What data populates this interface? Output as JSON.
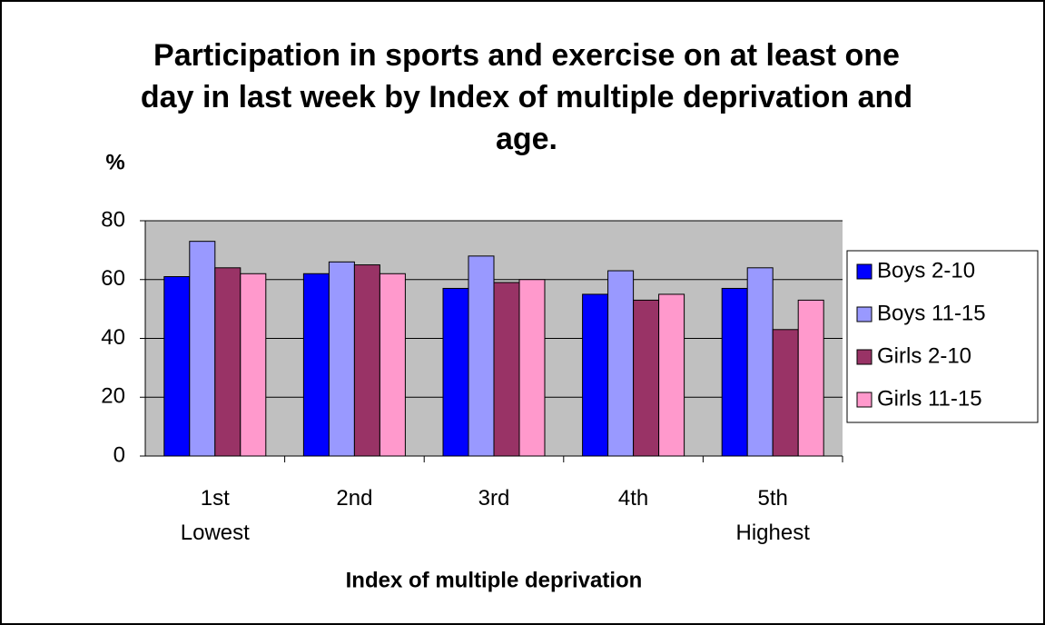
{
  "chart_data": {
    "type": "bar",
    "title": "Participation in sports and exercise on at least one day in last week by Index of multiple deprivation and age.",
    "y_label": "%",
    "x_label": "Index of multiple deprivation",
    "categories": [
      "1st\nLowest",
      "2nd",
      "3rd",
      "4th",
      "5th\nHighest"
    ],
    "series": [
      {
        "name": "Boys 2-10",
        "color": "#0000ff",
        "values": [
          61,
          62,
          57,
          55,
          57
        ]
      },
      {
        "name": "Boys 11-15",
        "color": "#9999ff",
        "values": [
          73,
          66,
          68,
          63,
          64
        ]
      },
      {
        "name": "Girls 2-10",
        "color": "#993366",
        "values": [
          64,
          65,
          59,
          53,
          43
        ]
      },
      {
        "name": "Girls 11-15",
        "color": "#ff99cc",
        "values": [
          62,
          62,
          60,
          55,
          53
        ]
      }
    ],
    "ylim": [
      0,
      80
    ],
    "yticks": [
      0,
      20,
      40,
      60,
      80
    ],
    "grid": true,
    "legend": "right"
  }
}
